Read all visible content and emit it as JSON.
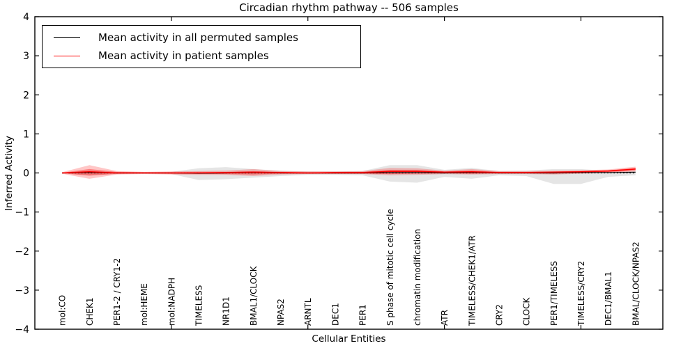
{
  "figure": {
    "background": "#ffffff",
    "accent_red": "#ff0000",
    "band_gray": "rgba(0,0,0,0.10)",
    "band_red_outer": "rgba(255,0,0,0.22)",
    "band_red_inner": "rgba(255,0,0,0.35)"
  },
  "chart_data": {
    "type": "line",
    "title": "Circadian rhythm pathway -- 506 samples",
    "xlabel": "Cellular Entities",
    "ylabel": "Inferred Activity",
    "ylim": [
      -4,
      4
    ],
    "xlim": [
      0,
      23
    ],
    "grid": false,
    "legend_position": "upper-left",
    "yticks": {
      "values": [
        4,
        3,
        2,
        1,
        0,
        -1,
        -2,
        -3,
        -4
      ],
      "labels": [
        "4",
        "3",
        "2",
        "1",
        "0",
        "−1",
        "−2",
        "−3",
        "−4"
      ]
    },
    "xticks_major_values": [
      5,
      10,
      15,
      20
    ],
    "categories": [
      "mol:CO",
      "CHEK1",
      "PER1-2 / CRY1-2",
      "mol:HEME",
      "mol:NADPH",
      "TIMELESS",
      "NR1D1",
      "BMAL1/CLOCK",
      "NPAS2",
      "ARNTL",
      "DEC1",
      "PER1",
      "S phase of mitotic cell cycle",
      "chromatin modification",
      "ATR",
      "TIMELESS/CHEK1/ATR",
      "CRY2",
      "CLOCK",
      "PER1/TIMELESS",
      "TIMELESS/CRY2",
      "DEC1/BMAL1",
      "BMAL/CLOCK/NPAS2"
    ],
    "zero_line": {
      "y": 0,
      "style": "dotted",
      "color": "#000000"
    },
    "series": [
      {
        "name": "Mean activity in all permuted samples",
        "color": "#000000",
        "width": 1.2,
        "values": [
          0,
          0.01,
          0,
          0,
          0,
          -0.01,
          0,
          0.01,
          0,
          0,
          0,
          0,
          0.01,
          0.01,
          0,
          0.01,
          0,
          0,
          0,
          0.01,
          0.01,
          0.02
        ]
      },
      {
        "name": "Mean activity in patient samples",
        "color": "#ff0000",
        "width": 1.6,
        "values": [
          0,
          0.03,
          0,
          0,
          0,
          0,
          0.01,
          0.02,
          0.01,
          0,
          0.01,
          0.01,
          0.04,
          0.04,
          0.02,
          0.03,
          0.01,
          0.01,
          0.02,
          0.03,
          0.05,
          0.1
        ]
      }
    ],
    "bands": [
      {
        "name": "permuted-samples-range",
        "color": "rgba(0,0,0,0.10)",
        "upper": [
          0.01,
          0.06,
          0.03,
          0.02,
          0.03,
          0.12,
          0.15,
          0.1,
          0.06,
          0.04,
          0.04,
          0.05,
          0.2,
          0.2,
          0.08,
          0.13,
          0.05,
          0.06,
          0.1,
          0.1,
          0.05,
          0.04
        ],
        "lower": [
          -0.01,
          -0.06,
          -0.03,
          -0.02,
          -0.03,
          -0.18,
          -0.16,
          -0.12,
          -0.08,
          -0.05,
          -0.05,
          -0.06,
          -0.22,
          -0.25,
          -0.1,
          -0.15,
          -0.06,
          -0.08,
          -0.28,
          -0.28,
          -0.1,
          -0.06
        ]
      },
      {
        "name": "patient-samples-range-outer",
        "color": "rgba(255,0,0,0.22)",
        "upper": [
          0.02,
          0.2,
          0.05,
          0.03,
          0.04,
          0.05,
          0.06,
          0.1,
          0.05,
          0.04,
          0.04,
          0.05,
          0.13,
          0.12,
          0.06,
          0.1,
          0.05,
          0.05,
          0.06,
          0.07,
          0.09,
          0.16
        ],
        "lower": [
          -0.02,
          -0.15,
          -0.04,
          -0.03,
          -0.04,
          -0.05,
          -0.05,
          -0.08,
          -0.04,
          -0.03,
          -0.03,
          -0.03,
          -0.06,
          -0.05,
          -0.03,
          -0.04,
          -0.03,
          -0.03,
          -0.04,
          -0.02,
          0.0,
          0.04
        ]
      },
      {
        "name": "patient-samples-range-inner",
        "color": "rgba(255,0,0,0.35)",
        "upper": [
          0.01,
          0.1,
          0.03,
          0.02,
          0.02,
          0.03,
          0.03,
          0.05,
          0.03,
          0.02,
          0.02,
          0.03,
          0.08,
          0.08,
          0.04,
          0.06,
          0.03,
          0.03,
          0.04,
          0.05,
          0.07,
          0.13
        ],
        "lower": [
          -0.01,
          -0.07,
          -0.02,
          -0.01,
          -0.02,
          -0.02,
          -0.03,
          -0.04,
          -0.02,
          -0.02,
          -0.02,
          -0.02,
          -0.03,
          -0.02,
          -0.01,
          -0.02,
          -0.01,
          -0.01,
          -0.02,
          0.0,
          0.02,
          0.06
        ]
      }
    ]
  },
  "legend": {
    "entries": [
      {
        "label": "Mean activity in all permuted samples",
        "color": "#000000"
      },
      {
        "label": "Mean activity in patient samples",
        "color": "#ff0000"
      }
    ]
  }
}
